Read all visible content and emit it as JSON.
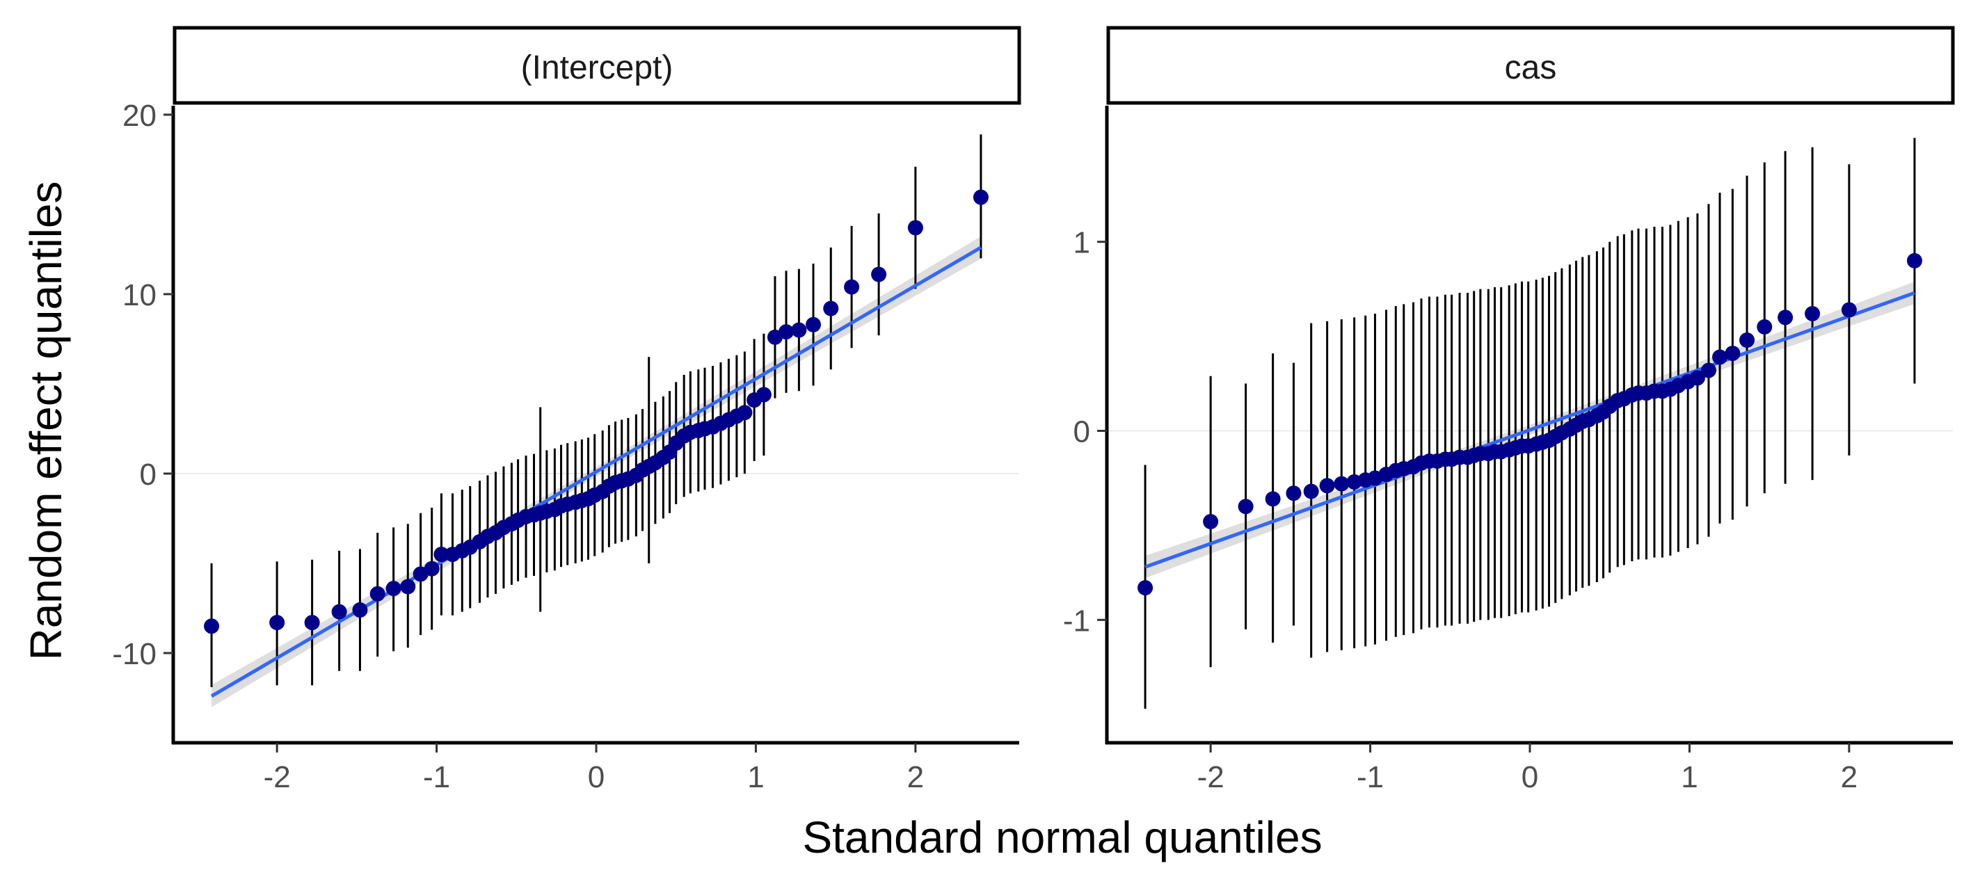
{
  "figure": {
    "xlabel": "Standard normal quantiles",
    "ylabel": "Random effect quantiles"
  },
  "colors": {
    "point": "#00008b",
    "errorbar": "#000000",
    "fit_line": "#3366ff",
    "band": "#c8c8c8",
    "zero_line": "#ebebeb"
  },
  "chart_data": [
    {
      "type": "scatter",
      "title": "(Intercept)",
      "xlabel": "Standard normal quantiles",
      "ylabel": "Random effect quantiles",
      "xlim": [
        -2.65,
        2.65
      ],
      "ylim": [
        -15,
        20.5
      ],
      "xticks": [
        -2,
        -1,
        0,
        1,
        2
      ],
      "xtick_labels": [
        "-2",
        "-1",
        "0",
        "1",
        "2"
      ],
      "yticks": [
        -10,
        0,
        10,
        20
      ],
      "ytick_labels": [
        "-10",
        "0",
        "10",
        "20"
      ],
      "zero_line": 0,
      "fit_line": {
        "x": [
          -2.41,
          2.41
        ],
        "y": [
          -12.4,
          12.6
        ]
      },
      "points": [
        {
          "x": -2.41,
          "y": -8.5,
          "lo": -11.9,
          "hi": -5.0
        },
        {
          "x": -2.0,
          "y": -8.3,
          "lo": -11.8,
          "hi": -4.9
        },
        {
          "x": -1.78,
          "y": -8.3,
          "lo": -11.8,
          "hi": -4.8
        },
        {
          "x": -1.61,
          "y": -7.7,
          "lo": -11.0,
          "hi": -4.3
        },
        {
          "x": -1.48,
          "y": -7.6,
          "lo": -11.0,
          "hi": -4.2
        },
        {
          "x": -1.37,
          "y": -6.7,
          "lo": -10.2,
          "hi": -3.3
        },
        {
          "x": -1.27,
          "y": -6.4,
          "lo": -9.9,
          "hi": -3.0
        },
        {
          "x": -1.18,
          "y": -6.3,
          "lo": -9.7,
          "hi": -2.8
        },
        {
          "x": -1.1,
          "y": -5.6,
          "lo": -9.0,
          "hi": -2.2
        },
        {
          "x": -1.03,
          "y": -5.3,
          "lo": -8.7,
          "hi": -1.9
        },
        {
          "x": -0.97,
          "y": -4.5,
          "lo": -7.9,
          "hi": -1.1
        },
        {
          "x": -0.9,
          "y": -4.5,
          "lo": -7.9,
          "hi": -1.1
        },
        {
          "x": -0.84,
          "y": -4.3,
          "lo": -7.7,
          "hi": -0.9
        },
        {
          "x": -0.79,
          "y": -4.1,
          "lo": -7.5,
          "hi": -0.7
        },
        {
          "x": -0.73,
          "y": -3.8,
          "lo": -7.2,
          "hi": -0.4
        },
        {
          "x": -0.68,
          "y": -3.5,
          "lo": -6.9,
          "hi": -0.1
        },
        {
          "x": -0.63,
          "y": -3.3,
          "lo": -6.7,
          "hi": 0.1
        },
        {
          "x": -0.58,
          "y": -3.0,
          "lo": -6.4,
          "hi": 0.4
        },
        {
          "x": -0.53,
          "y": -2.8,
          "lo": -6.2,
          "hi": 0.6
        },
        {
          "x": -0.49,
          "y": -2.6,
          "lo": -6.0,
          "hi": 0.8
        },
        {
          "x": -0.44,
          "y": -2.4,
          "lo": -5.8,
          "hi": 1.0
        },
        {
          "x": -0.39,
          "y": -2.3,
          "lo": -5.7,
          "hi": 1.1
        },
        {
          "x": -0.35,
          "y": -2.2,
          "lo": -7.7,
          "hi": 3.7
        },
        {
          "x": -0.31,
          "y": -2.1,
          "lo": -5.5,
          "hi": 1.3
        },
        {
          "x": -0.26,
          "y": -2.0,
          "lo": -5.4,
          "hi": 1.4
        },
        {
          "x": -0.22,
          "y": -1.8,
          "lo": -5.2,
          "hi": 1.6
        },
        {
          "x": -0.18,
          "y": -1.7,
          "lo": -5.1,
          "hi": 1.7
        },
        {
          "x": -0.13,
          "y": -1.6,
          "lo": -5.0,
          "hi": 1.8
        },
        {
          "x": -0.09,
          "y": -1.5,
          "lo": -4.9,
          "hi": 1.9
        },
        {
          "x": -0.05,
          "y": -1.4,
          "lo": -4.8,
          "hi": 2.0
        },
        {
          "x": -0.01,
          "y": -1.2,
          "lo": -4.6,
          "hi": 2.2
        },
        {
          "x": 0.04,
          "y": -1.0,
          "lo": -4.4,
          "hi": 2.4
        },
        {
          "x": 0.08,
          "y": -0.7,
          "lo": -4.1,
          "hi": 2.7
        },
        {
          "x": 0.12,
          "y": -0.5,
          "lo": -3.9,
          "hi": 2.9
        },
        {
          "x": 0.16,
          "y": -0.4,
          "lo": -3.8,
          "hi": 3.0
        },
        {
          "x": 0.2,
          "y": -0.3,
          "lo": -3.7,
          "hi": 3.1
        },
        {
          "x": 0.25,
          "y": -0.1,
          "lo": -3.5,
          "hi": 3.3
        },
        {
          "x": 0.29,
          "y": 0.2,
          "lo": -3.2,
          "hi": 3.6
        },
        {
          "x": 0.33,
          "y": 0.4,
          "lo": -5.0,
          "hi": 6.5
        },
        {
          "x": 0.37,
          "y": 0.6,
          "lo": -2.8,
          "hi": 4.0
        },
        {
          "x": 0.42,
          "y": 0.9,
          "lo": -2.5,
          "hi": 4.3
        },
        {
          "x": 0.46,
          "y": 1.2,
          "lo": -2.2,
          "hi": 4.6
        },
        {
          "x": 0.5,
          "y": 1.7,
          "lo": -1.7,
          "hi": 5.1
        },
        {
          "x": 0.55,
          "y": 2.1,
          "lo": -1.3,
          "hi": 5.5
        },
        {
          "x": 0.59,
          "y": 2.3,
          "lo": -1.1,
          "hi": 5.7
        },
        {
          "x": 0.64,
          "y": 2.4,
          "lo": -1.0,
          "hi": 5.8
        },
        {
          "x": 0.68,
          "y": 2.5,
          "lo": -0.9,
          "hi": 5.9
        },
        {
          "x": 0.73,
          "y": 2.6,
          "lo": -0.8,
          "hi": 6.0
        },
        {
          "x": 0.78,
          "y": 2.8,
          "lo": -0.6,
          "hi": 6.2
        },
        {
          "x": 0.83,
          "y": 3.0,
          "lo": -0.4,
          "hi": 6.4
        },
        {
          "x": 0.88,
          "y": 3.2,
          "lo": -0.2,
          "hi": 6.6
        },
        {
          "x": 0.93,
          "y": 3.4,
          "lo": 0.0,
          "hi": 6.8
        },
        {
          "x": 0.99,
          "y": 4.1,
          "lo": 0.7,
          "hi": 7.5
        },
        {
          "x": 1.05,
          "y": 4.4,
          "lo": 1.0,
          "hi": 7.8
        },
        {
          "x": 1.12,
          "y": 7.6,
          "lo": 4.2,
          "hi": 11.0
        },
        {
          "x": 1.19,
          "y": 7.9,
          "lo": 4.5,
          "hi": 11.3
        },
        {
          "x": 1.27,
          "y": 8.0,
          "lo": 4.6,
          "hi": 11.4
        },
        {
          "x": 1.36,
          "y": 8.3,
          "lo": 4.9,
          "hi": 11.7
        },
        {
          "x": 1.47,
          "y": 9.2,
          "lo": 5.8,
          "hi": 12.6
        },
        {
          "x": 1.6,
          "y": 10.4,
          "lo": 7.0,
          "hi": 13.8
        },
        {
          "x": 1.77,
          "y": 11.1,
          "lo": 7.7,
          "hi": 14.5
        },
        {
          "x": 2.0,
          "y": 13.7,
          "lo": 10.3,
          "hi": 17.1
        },
        {
          "x": 2.41,
          "y": 15.4,
          "lo": 12.0,
          "hi": 18.9
        }
      ]
    },
    {
      "type": "scatter",
      "title": "cas",
      "xlabel": "Standard normal quantiles",
      "ylabel": "Random effect quantiles",
      "xlim": [
        -2.65,
        2.65
      ],
      "ylim": [
        -1.65,
        1.72
      ],
      "xticks": [
        -2,
        -1,
        0,
        1,
        2
      ],
      "xtick_labels": [
        "-2",
        "-1",
        "0",
        "1",
        "2"
      ],
      "yticks": [
        -1,
        0,
        1
      ],
      "ytick_labels": [
        "-1",
        "0",
        "1"
      ],
      "zero_line": 0,
      "fit_line": {
        "x": [
          -2.41,
          2.41
        ],
        "y": [
          -0.72,
          0.73
        ]
      },
      "points": [
        {
          "x": -2.41,
          "y": -0.83,
          "lo": -1.47,
          "hi": -0.18
        },
        {
          "x": -2.0,
          "y": -0.48,
          "lo": -1.25,
          "hi": 0.29
        },
        {
          "x": -1.78,
          "y": -0.4,
          "lo": -1.05,
          "hi": 0.25
        },
        {
          "x": -1.61,
          "y": -0.36,
          "lo": -1.12,
          "hi": 0.41
        },
        {
          "x": -1.48,
          "y": -0.33,
          "lo": -1.03,
          "hi": 0.36
        },
        {
          "x": -1.37,
          "y": -0.32,
          "lo": -1.2,
          "hi": 0.57
        },
        {
          "x": -1.27,
          "y": -0.29,
          "lo": -1.17,
          "hi": 0.58
        },
        {
          "x": -1.18,
          "y": -0.28,
          "lo": -1.16,
          "hi": 0.59
        },
        {
          "x": -1.1,
          "y": -0.27,
          "lo": -1.15,
          "hi": 0.6
        },
        {
          "x": -1.03,
          "y": -0.26,
          "lo": -1.14,
          "hi": 0.61
        },
        {
          "x": -0.97,
          "y": -0.25,
          "lo": -1.13,
          "hi": 0.62
        },
        {
          "x": -0.9,
          "y": -0.23,
          "lo": -1.11,
          "hi": 0.64
        },
        {
          "x": -0.84,
          "y": -0.21,
          "lo": -1.09,
          "hi": 0.66
        },
        {
          "x": -0.79,
          "y": -0.2,
          "lo": -1.08,
          "hi": 0.67
        },
        {
          "x": -0.73,
          "y": -0.19,
          "lo": -1.07,
          "hi": 0.68
        },
        {
          "x": -0.68,
          "y": -0.17,
          "lo": -1.05,
          "hi": 0.7
        },
        {
          "x": -0.63,
          "y": -0.16,
          "lo": -1.04,
          "hi": 0.71
        },
        {
          "x": -0.58,
          "y": -0.16,
          "lo": -1.04,
          "hi": 0.71
        },
        {
          "x": -0.53,
          "y": -0.15,
          "lo": -1.03,
          "hi": 0.72
        },
        {
          "x": -0.49,
          "y": -0.15,
          "lo": -1.03,
          "hi": 0.72
        },
        {
          "x": -0.44,
          "y": -0.14,
          "lo": -1.02,
          "hi": 0.73
        },
        {
          "x": -0.39,
          "y": -0.14,
          "lo": -1.02,
          "hi": 0.73
        },
        {
          "x": -0.35,
          "y": -0.13,
          "lo": -1.01,
          "hi": 0.74
        },
        {
          "x": -0.31,
          "y": -0.12,
          "lo": -1.0,
          "hi": 0.75
        },
        {
          "x": -0.26,
          "y": -0.12,
          "lo": -1.0,
          "hi": 0.75
        },
        {
          "x": -0.22,
          "y": -0.11,
          "lo": -0.99,
          "hi": 0.76
        },
        {
          "x": -0.18,
          "y": -0.11,
          "lo": -0.99,
          "hi": 0.76
        },
        {
          "x": -0.13,
          "y": -0.1,
          "lo": -0.98,
          "hi": 0.77
        },
        {
          "x": -0.09,
          "y": -0.09,
          "lo": -0.97,
          "hi": 0.78
        },
        {
          "x": -0.05,
          "y": -0.08,
          "lo": -0.96,
          "hi": 0.79
        },
        {
          "x": -0.01,
          "y": -0.08,
          "lo": -0.96,
          "hi": 0.79
        },
        {
          "x": 0.04,
          "y": -0.07,
          "lo": -0.95,
          "hi": 0.8
        },
        {
          "x": 0.08,
          "y": -0.06,
          "lo": -0.94,
          "hi": 0.81
        },
        {
          "x": 0.12,
          "y": -0.05,
          "lo": -0.93,
          "hi": 0.82
        },
        {
          "x": 0.16,
          "y": -0.03,
          "lo": -0.91,
          "hi": 0.84
        },
        {
          "x": 0.2,
          "y": -0.01,
          "lo": -0.89,
          "hi": 0.86
        },
        {
          "x": 0.25,
          "y": 0.01,
          "lo": -0.87,
          "hi": 0.88
        },
        {
          "x": 0.29,
          "y": 0.03,
          "lo": -0.85,
          "hi": 0.9
        },
        {
          "x": 0.33,
          "y": 0.05,
          "lo": -0.83,
          "hi": 0.92
        },
        {
          "x": 0.37,
          "y": 0.06,
          "lo": -0.82,
          "hi": 0.93
        },
        {
          "x": 0.42,
          "y": 0.08,
          "lo": -0.8,
          "hi": 0.95
        },
        {
          "x": 0.46,
          "y": 0.1,
          "lo": -0.78,
          "hi": 0.97
        },
        {
          "x": 0.5,
          "y": 0.13,
          "lo": -0.75,
          "hi": 1.0
        },
        {
          "x": 0.55,
          "y": 0.16,
          "lo": -0.72,
          "hi": 1.03
        },
        {
          "x": 0.59,
          "y": 0.17,
          "lo": -0.71,
          "hi": 1.04
        },
        {
          "x": 0.64,
          "y": 0.19,
          "lo": -0.69,
          "hi": 1.06
        },
        {
          "x": 0.68,
          "y": 0.2,
          "lo": -0.68,
          "hi": 1.07
        },
        {
          "x": 0.73,
          "y": 0.2,
          "lo": -0.68,
          "hi": 1.07
        },
        {
          "x": 0.78,
          "y": 0.21,
          "lo": -0.67,
          "hi": 1.08
        },
        {
          "x": 0.83,
          "y": 0.21,
          "lo": -0.67,
          "hi": 1.08
        },
        {
          "x": 0.88,
          "y": 0.22,
          "lo": -0.66,
          "hi": 1.09
        },
        {
          "x": 0.93,
          "y": 0.24,
          "lo": -0.64,
          "hi": 1.11
        },
        {
          "x": 0.99,
          "y": 0.26,
          "lo": -0.62,
          "hi": 1.13
        },
        {
          "x": 1.05,
          "y": 0.28,
          "lo": -0.6,
          "hi": 1.15
        },
        {
          "x": 1.12,
          "y": 0.32,
          "lo": -0.56,
          "hi": 1.2
        },
        {
          "x": 1.19,
          "y": 0.39,
          "lo": -0.49,
          "hi": 1.26
        },
        {
          "x": 1.27,
          "y": 0.41,
          "lo": -0.47,
          "hi": 1.28
        },
        {
          "x": 1.36,
          "y": 0.48,
          "lo": -0.4,
          "hi": 1.35
        },
        {
          "x": 1.47,
          "y": 0.55,
          "lo": -0.33,
          "hi": 1.42
        },
        {
          "x": 1.6,
          "y": 0.6,
          "lo": -0.28,
          "hi": 1.48
        },
        {
          "x": 1.77,
          "y": 0.62,
          "lo": -0.26,
          "hi": 1.5
        },
        {
          "x": 2.0,
          "y": 0.64,
          "lo": -0.13,
          "hi": 1.41
        },
        {
          "x": 2.41,
          "y": 0.9,
          "lo": 0.25,
          "hi": 1.55
        }
      ]
    }
  ]
}
